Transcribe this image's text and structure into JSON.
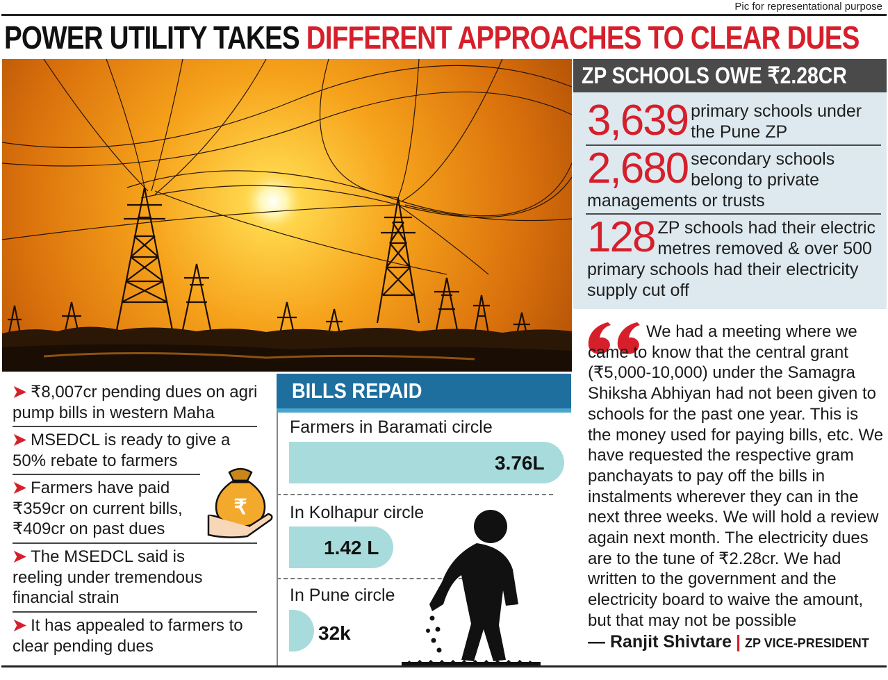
{
  "credit": "Pic for representational purpose",
  "headline": {
    "part1": "POWER UTILITY TAKES ",
    "part2": "DIFFERENT APPROACHES TO CLEAR DUES"
  },
  "zp": {
    "title": "ZP SCHOOLS OWE ₹2.28CR",
    "stats": [
      {
        "number": "3,639",
        "text": "primary schools under the Pune ZP"
      },
      {
        "number": "2,680",
        "text": "secondary schools belong to private managements or trusts"
      },
      {
        "number": "128",
        "text": "ZP schools had their electric metres removed & over 500 primary schools had their electricity supply cut off"
      }
    ]
  },
  "quote": {
    "text": "We had a meeting where we came to know that the central grant (₹5,000-10,000) under the Samagra Shiksha Abhiyan had not been given to schools for the past one year. This is the money used for paying bills, etc. We have requested the respective gram panchayats to pay off the bills in instalments wherever they can in the next three weeks. We will hold a review again next month. The electricity dues are to the tune of ₹2.28cr. We had written to the government and the electricity board to waive the amount, but that may not be possible",
    "author": "— Ranjit Shivtare",
    "role": "ZP VICE-PRESIDENT"
  },
  "bullets": [
    "₹8,007cr pending dues on agri pump bills in western Maha",
    "MSEDCL is ready to give a 50% rebate to farmers",
    "Farmers have paid ₹359cr on current bills, ₹409cr on past dues",
    "The MSEDCL said is reeling under tremendous financial strain",
    "It has appealed to farmers to clear pending dues"
  ],
  "bills": {
    "title": "BILLS REPAID",
    "items": [
      {
        "label": "Farmers in Baramati circle",
        "value": "3.76L",
        "amount_lakh": 3.76
      },
      {
        "label": "In Kolhapur circle",
        "value": "1.42 L",
        "amount_lakh": 1.42
      },
      {
        "label": "In Pune circle",
        "value": "32k",
        "amount_lakh": 0.32
      }
    ]
  },
  "colors": {
    "accent_red": "#d51f2b",
    "panel_grey": "#4a4a4a",
    "panel_bg": "#dde9ef",
    "bills_blue": "#1f6f9e",
    "bar_teal": "#a8dcdc"
  },
  "icons": [
    "money-bag-icon",
    "quote-mark-icon",
    "person-icon",
    "arrow-bullet-icon"
  ]
}
